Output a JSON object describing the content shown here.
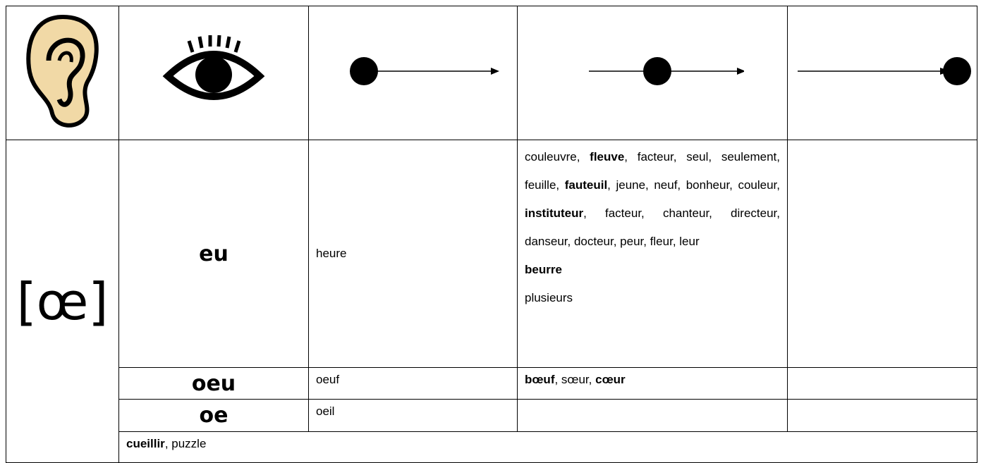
{
  "phoneme": "[œ]",
  "rows": [
    {
      "spelling": "eu",
      "initial": [
        [
          {
            "text": "heure"
          }
        ]
      ],
      "medial": [
        [
          {
            "text": "couleuvre, "
          },
          {
            "text": "fleuve",
            "bold": true
          },
          {
            "text": ", facteur, seul, seulement, feuille, "
          },
          {
            "text": "fauteuil",
            "bold": true
          },
          {
            "text": ", jeune, neuf, bonheur, couleur, "
          },
          {
            "text": "instituteur",
            "bold": true
          },
          {
            "text": ", facteur, chanteur, directeur, danseur, docteur, peur, fleur, leur"
          }
        ],
        [
          {
            "text": "beurre",
            "bold": true
          }
        ],
        [
          {
            "text": "plusieurs"
          }
        ]
      ],
      "final": []
    },
    {
      "spelling": "oeu",
      "initial": [
        [
          {
            "text": "oeuf"
          }
        ]
      ],
      "medial": [
        [
          {
            "text": "bœuf",
            "bold": true
          },
          {
            "text": ", sœur, "
          },
          {
            "text": "cœur",
            "bold": true
          }
        ]
      ],
      "final": []
    },
    {
      "spelling": "oe",
      "initial": [
        [
          {
            "text": "oeil"
          }
        ]
      ],
      "medial": [],
      "final": []
    }
  ],
  "footer": [
    [
      {
        "text": "cueillir",
        "bold": true
      },
      {
        "text": ", puzzle"
      }
    ]
  ]
}
